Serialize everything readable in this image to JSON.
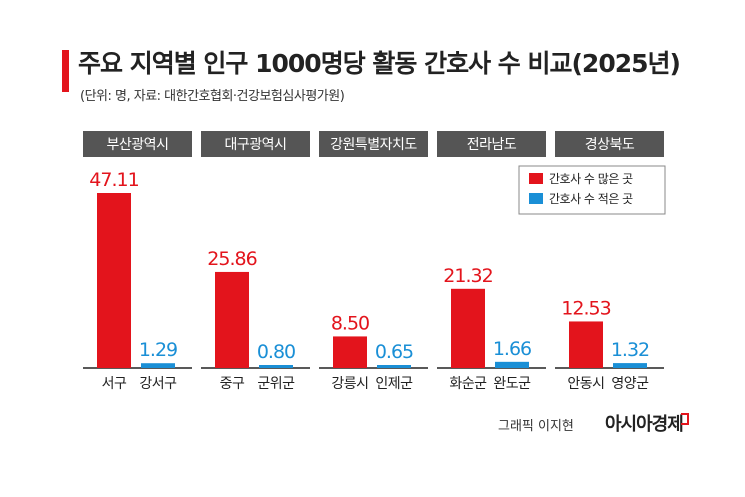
{
  "title": "주요 지역별 인구 1000명당 활동 간호사 수 비교(2025년)",
  "source": "(단위: 명, 자료: 대한간호협회·건강보험심사평가원)",
  "credit": "그래픽 이지현",
  "logo": "아시아경제",
  "colors": {
    "high": "#e3141c",
    "low": "#1a8fd6",
    "header": "#555555",
    "accent": "#e3141c"
  },
  "chart_data": {
    "type": "bar",
    "ylim": [
      0,
      50
    ],
    "legend": {
      "placement": "top-right",
      "entries": [
        {
          "label": "간호사 수 많은 곳",
          "color": "#e3141c"
        },
        {
          "label": "간호사 수 적은 곳",
          "color": "#1a8fd6"
        }
      ]
    },
    "groups": [
      {
        "region": "부산광역시",
        "bars": [
          {
            "name": "서구",
            "value": 47.11,
            "label": "47.11",
            "kind": "high"
          },
          {
            "name": "강서구",
            "value": 1.29,
            "label": "1.29",
            "kind": "low"
          }
        ]
      },
      {
        "region": "대구광역시",
        "bars": [
          {
            "name": "중구",
            "value": 25.86,
            "label": "25.86",
            "kind": "high"
          },
          {
            "name": "군위군",
            "value": 0.8,
            "label": "0.80",
            "kind": "low"
          }
        ]
      },
      {
        "region": "강원특별자치도",
        "bars": [
          {
            "name": "강릉시",
            "value": 8.5,
            "label": "8.50",
            "kind": "high"
          },
          {
            "name": "인제군",
            "value": 0.65,
            "label": "0.65",
            "kind": "low"
          }
        ]
      },
      {
        "region": "전라남도",
        "bars": [
          {
            "name": "화순군",
            "value": 21.32,
            "label": "21.32",
            "kind": "high"
          },
          {
            "name": "완도군",
            "value": 1.66,
            "label": "1.66",
            "kind": "low"
          }
        ]
      },
      {
        "region": "경상북도",
        "bars": [
          {
            "name": "안동시",
            "value": 12.53,
            "label": "12.53",
            "kind": "high"
          },
          {
            "name": "영양군",
            "value": 1.32,
            "label": "1.32",
            "kind": "low"
          }
        ]
      }
    ]
  }
}
